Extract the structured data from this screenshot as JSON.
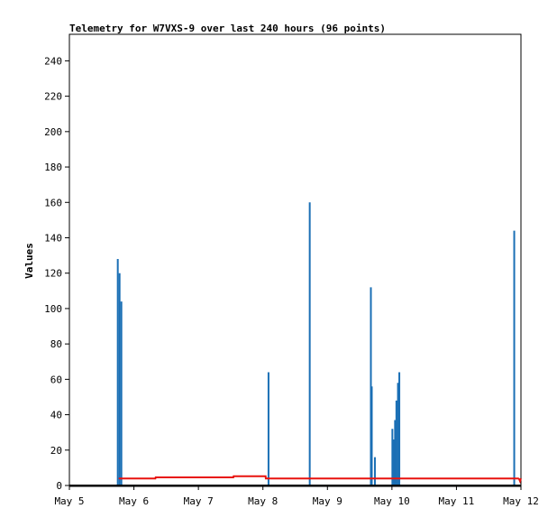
{
  "chart_data": {
    "type": "bar",
    "title": "Telemetry for W7VXS-9 over last 240 hours (96 points)",
    "xlabel": "",
    "ylabel": "Values",
    "ylim": [
      0,
      255
    ],
    "xlim": [
      "2024-05-05T00:00",
      "2024-05-12T00:00"
    ],
    "x_ticks": [
      "May 5",
      "May 6",
      "May 7",
      "May 8",
      "May 9",
      "May 10",
      "May 11",
      "May 12"
    ],
    "y_ticks": [
      0,
      20,
      40,
      60,
      80,
      100,
      120,
      140,
      160,
      180,
      200,
      220,
      240
    ],
    "grid": false,
    "colors": {
      "bars": "#1a6fb5",
      "line": "#e8130f",
      "baseline": "#000000"
    },
    "series": [
      {
        "kind": "bars",
        "x": [
          "2024-05-05T18:00",
          "2024-05-05T18:40",
          "2024-05-05T19:20",
          "2024-05-08T02:05",
          "2024-05-08T17:25",
          "2024-05-09T16:10",
          "2024-05-09T16:30",
          "2024-05-09T17:40",
          "2024-05-10T00:10",
          "2024-05-10T00:40",
          "2024-05-10T01:10",
          "2024-05-10T01:40",
          "2024-05-10T02:15",
          "2024-05-10T02:45",
          "2024-05-11T21:30"
        ],
        "values": [
          128,
          120,
          104,
          64,
          160,
          112,
          56,
          16,
          32,
          26,
          37,
          48,
          58,
          64,
          144
        ]
      },
      {
        "kind": "line",
        "x": [
          "2024-05-05T18:20",
          "2024-05-06T08:00",
          "2024-05-06T08:05",
          "2024-05-07T13:00",
          "2024-05-07T13:05",
          "2024-05-08T01:00",
          "2024-05-08T01:05",
          "2024-05-11T23:00",
          "2024-05-11T23:20",
          "2024-05-11T23:40",
          "2024-05-12T00:00"
        ],
        "values": [
          4,
          4,
          4.6,
          4.6,
          5.2,
          5.2,
          4,
          4,
          3.6,
          2.4,
          4
        ]
      }
    ]
  }
}
